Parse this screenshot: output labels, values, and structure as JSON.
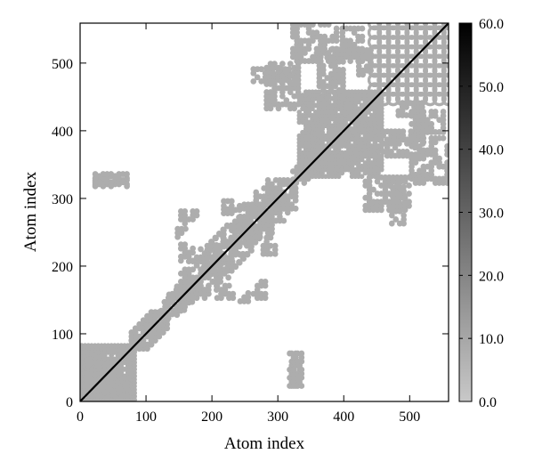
{
  "chart_data": {
    "type": "heatmap",
    "title": "",
    "xlabel": "Atom index",
    "ylabel": "Atom index",
    "xlim": [
      0,
      559
    ],
    "ylim": [
      0,
      559
    ],
    "x_ticks": [
      0,
      100,
      200,
      300,
      400,
      500
    ],
    "y_ticks": [
      0,
      100,
      200,
      300,
      400,
      500
    ],
    "x_tick_labels": [
      "0",
      "100",
      "200",
      "300",
      "400",
      "500"
    ],
    "y_tick_labels": [
      "0",
      "100",
      "200",
      "300",
      "400",
      "500"
    ],
    "colorbar": {
      "range": [
        0,
        60
      ],
      "ticks": [
        0,
        10,
        20,
        30,
        40,
        50,
        60
      ],
      "tick_labels": [
        "0.0",
        "10.0",
        "20.0",
        "30.0",
        "40.0",
        "50.0",
        "60.0"
      ],
      "low_color": "#c8c8c8",
      "high_color": "#000000"
    },
    "grid": false,
    "diagonal": {
      "from": 0,
      "to": 559,
      "value": 60
    },
    "regions": [
      {
        "x": [
          0,
          85
        ],
        "y": [
          0,
          85
        ],
        "value": 8,
        "pattern": "dense"
      },
      {
        "x": [
          20,
          75
        ],
        "y": [
          0,
          30
        ],
        "value": 8,
        "pattern": "dense"
      },
      {
        "x": [
          75,
          130
        ],
        "y": [
          75,
          130
        ],
        "value": 8,
        "pattern": "band"
      },
      {
        "x": [
          125,
          175
        ],
        "y": [
          120,
          175
        ],
        "value": 8,
        "pattern": "band"
      },
      {
        "x": [
          150,
          230
        ],
        "y": [
          150,
          210
        ],
        "value": 8,
        "pattern": "band"
      },
      {
        "x": [
          185,
          270
        ],
        "y": [
          190,
          260
        ],
        "value": 8,
        "pattern": "band"
      },
      {
        "x": [
          240,
          330
        ],
        "y": [
          240,
          320
        ],
        "value": 8,
        "pattern": "band"
      },
      {
        "x": [
          325,
          370
        ],
        "y": [
          320,
          370
        ],
        "value": 8,
        "pattern": "band"
      },
      {
        "x": [
          340,
          455
        ],
        "y": [
          330,
          460
        ],
        "value": 8,
        "pattern": "dense"
      },
      {
        "x": [
          440,
          559
        ],
        "y": [
          440,
          559
        ],
        "value": 8,
        "pattern": "lattice"
      },
      {
        "x": [
          260,
          280
        ],
        "y": [
          150,
          180
        ],
        "value": 8,
        "pattern": "blob"
      },
      {
        "x": [
          275,
          295
        ],
        "y": [
          215,
          230
        ],
        "value": 8,
        "pattern": "blob"
      },
      {
        "x": [
          205,
          235
        ],
        "y": [
          150,
          170
        ],
        "value": 8,
        "pattern": "blob"
      },
      {
        "x": [
          145,
          160
        ],
        "y": [
          240,
          255
        ],
        "value": 8,
        "pattern": "blob"
      },
      {
        "x": [
          215,
          240
        ],
        "y": [
          280,
          292
        ],
        "value": 8,
        "pattern": "blob"
      },
      {
        "x": [
          20,
          70
        ],
        "y": [
          318,
          332
        ],
        "value": 8,
        "pattern": "blob"
      },
      {
        "x": [
          315,
          335
        ],
        "y": [
          20,
          70
        ],
        "value": 8,
        "pattern": "blob"
      },
      {
        "x": [
          260,
          320
        ],
        "y": [
          470,
          490
        ],
        "value": 8,
        "pattern": "blob"
      },
      {
        "x": [
          320,
          390
        ],
        "y": [
          500,
          559
        ],
        "value": 8,
        "pattern": "blob"
      },
      {
        "x": [
          395,
          430
        ],
        "y": [
          500,
          550
        ],
        "value": 8,
        "pattern": "blob"
      },
      {
        "x": [
          430,
          500
        ],
        "y": [
          280,
          330
        ],
        "value": 8,
        "pattern": "blob"
      },
      {
        "x": [
          445,
          520
        ],
        "y": [
          360,
          400
        ],
        "value": 8,
        "pattern": "blob"
      },
      {
        "x": [
          480,
          520
        ],
        "y": [
          420,
          440
        ],
        "value": 8,
        "pattern": "blob"
      }
    ]
  }
}
